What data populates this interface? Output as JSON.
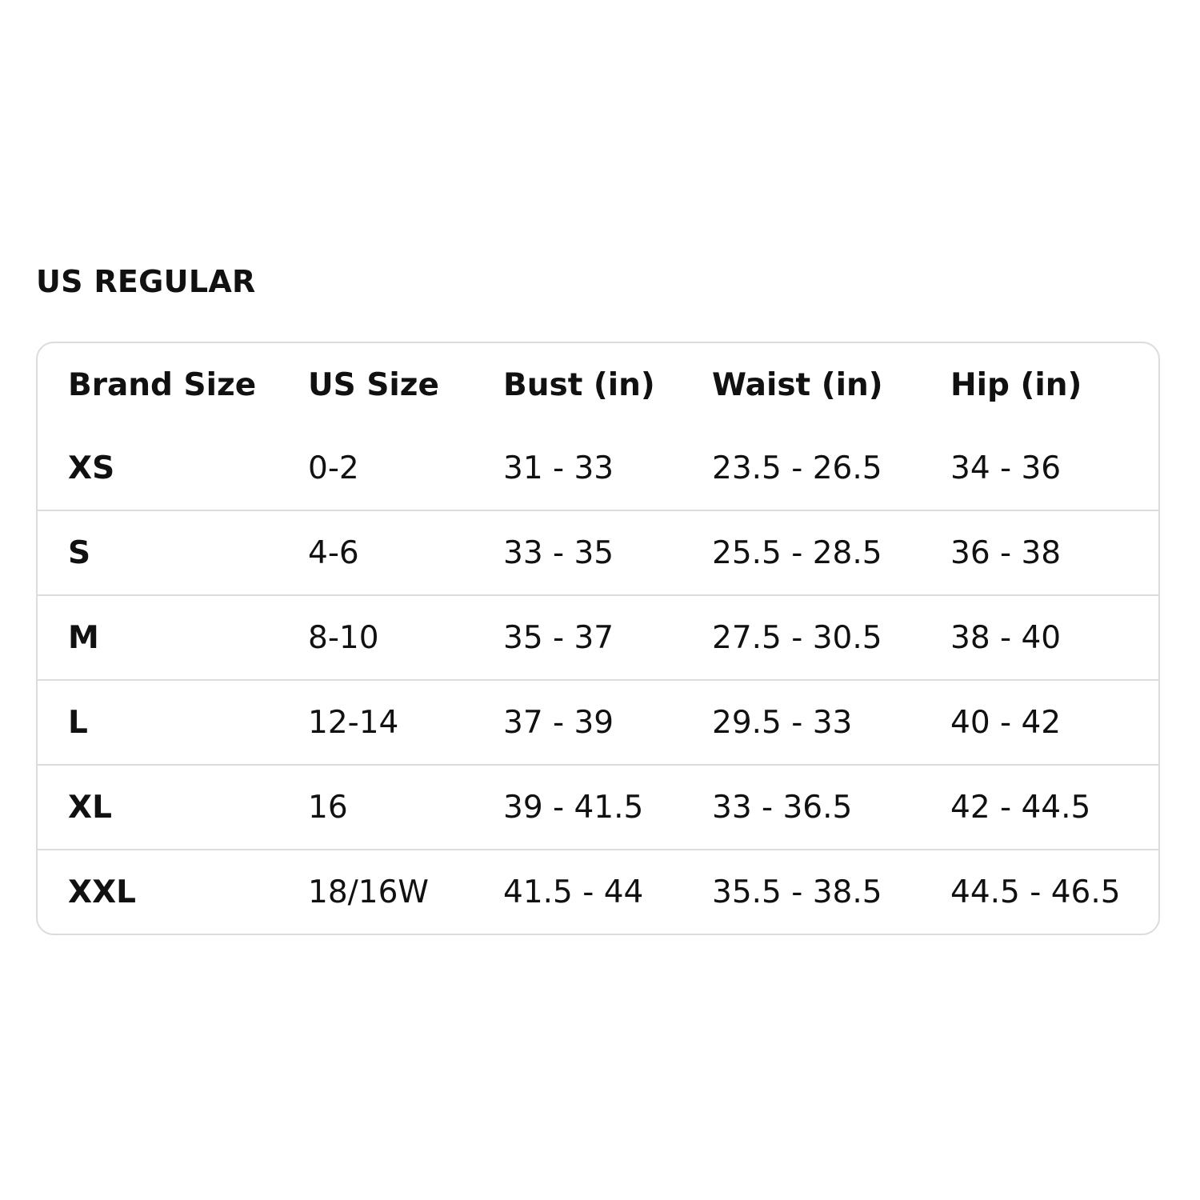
{
  "title": "US REGULAR",
  "table": {
    "headers": [
      "Brand Size",
      "US Size",
      "Bust (in)",
      "Waist (in)",
      "Hip (in)"
    ],
    "rows": [
      [
        "XS",
        "0-2",
        "31 - 33",
        "23.5 - 26.5",
        "34 - 36"
      ],
      [
        "S",
        "4-6",
        "33 - 35",
        "25.5 - 28.5",
        "36 - 38"
      ],
      [
        "M",
        "8-10",
        "35 - 37",
        "27.5 - 30.5",
        "38 - 40"
      ],
      [
        "L",
        "12-14",
        "37 - 39",
        "29.5 - 33",
        "40 - 42"
      ],
      [
        "XL",
        "16",
        "39 - 41.5",
        "33 - 36.5",
        "42 - 44.5"
      ],
      [
        "XXL",
        "18/16W",
        "41.5 - 44",
        "35.5 - 38.5",
        "44.5 - 46.5"
      ]
    ]
  }
}
